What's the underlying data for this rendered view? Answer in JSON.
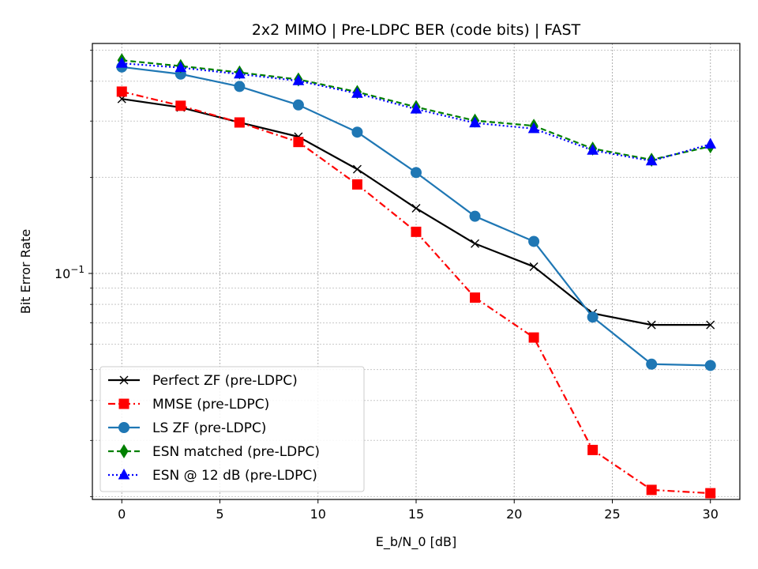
{
  "chart_data": {
    "type": "line",
    "title": "2x2 MIMO | Pre-LDPC BER (code bits) | FAST",
    "xlabel": "E_b/N_0 [dB]",
    "ylabel": "Bit Error Rate",
    "xscale": "linear",
    "yscale": "log",
    "xlim": [
      -1.5,
      31.5
    ],
    "ylim": [
      0.0196,
      0.525
    ],
    "grid": true,
    "legend_position": "lower-left",
    "x_ticks": [
      0,
      5,
      10,
      15,
      20,
      25,
      30
    ],
    "x_tick_labels": [
      "0",
      "5",
      "10",
      "15",
      "20",
      "25",
      "30"
    ],
    "y_ticks": [
      0.1
    ],
    "y_tick_labels": [
      "10",
      "−1"
    ],
    "x": [
      0,
      3,
      6,
      9,
      12,
      15,
      18,
      21,
      24,
      27,
      30
    ],
    "series": [
      {
        "name": "Perfect ZF (pre-LDPC)",
        "color": "#000000",
        "linestyle": "solid",
        "marker": "x",
        "values": [
          0.352,
          0.331,
          0.297,
          0.268,
          0.212,
          0.16,
          0.124,
          0.105,
          0.075,
          0.069,
          0.069
        ]
      },
      {
        "name": "MMSE (pre-LDPC)",
        "color": "#ff0000",
        "linestyle": "dashdot",
        "marker": "square",
        "values": [
          0.371,
          0.335,
          0.297,
          0.258,
          0.19,
          0.135,
          0.084,
          0.063,
          0.028,
          0.021,
          0.0205
        ]
      },
      {
        "name": "LS ZF (pre-LDPC)",
        "color": "#1f77b4",
        "linestyle": "solid",
        "marker": "circle",
        "values": [
          0.443,
          0.421,
          0.385,
          0.337,
          0.277,
          0.207,
          0.151,
          0.126,
          0.073,
          0.052,
          0.0515
        ]
      },
      {
        "name": "ESN matched (pre-LDPC)",
        "color": "#008000",
        "linestyle": "dashed",
        "marker": "thin-diamond",
        "values": [
          0.465,
          0.446,
          0.426,
          0.405,
          0.37,
          0.332,
          0.301,
          0.29,
          0.246,
          0.227,
          0.25
        ]
      },
      {
        "name": "ESN @ 12 dB (pre-LDPC)",
        "color": "#0000ff",
        "linestyle": "dotted",
        "marker": "triangle-up",
        "values": [
          0.455,
          0.441,
          0.421,
          0.401,
          0.366,
          0.327,
          0.296,
          0.284,
          0.243,
          0.225,
          0.254
        ]
      }
    ]
  }
}
